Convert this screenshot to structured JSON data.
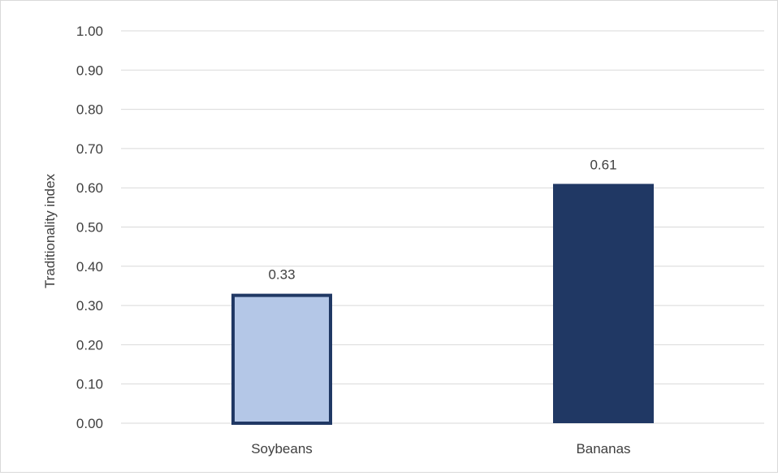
{
  "chart_data": {
    "type": "bar",
    "title": "",
    "xlabel": "",
    "ylabel": "Traditionality index",
    "categories": [
      "Soybeans",
      "Bananas"
    ],
    "values": [
      0.33,
      0.61
    ],
    "data_labels": [
      "0.33",
      "0.61"
    ],
    "ylim": [
      0,
      1
    ],
    "yticks": [
      0,
      0.1,
      0.2,
      0.3,
      0.4,
      0.5,
      0.6,
      0.7,
      0.8,
      0.9,
      1.0
    ],
    "ytick_labels": [
      "0.00",
      "0.10",
      "0.20",
      "0.30",
      "0.40",
      "0.50",
      "0.60",
      "0.70",
      "0.80",
      "0.90",
      "1.00"
    ],
    "grid": true,
    "legend": "none",
    "bar_styles": [
      {
        "fill": "#b4c7e7",
        "stroke": "#203864"
      },
      {
        "fill": "#203864",
        "stroke": "#203864"
      }
    ],
    "colors": {
      "gridline": "#d9d9d9",
      "text": "#404040",
      "border": "#d9d9d9"
    }
  }
}
